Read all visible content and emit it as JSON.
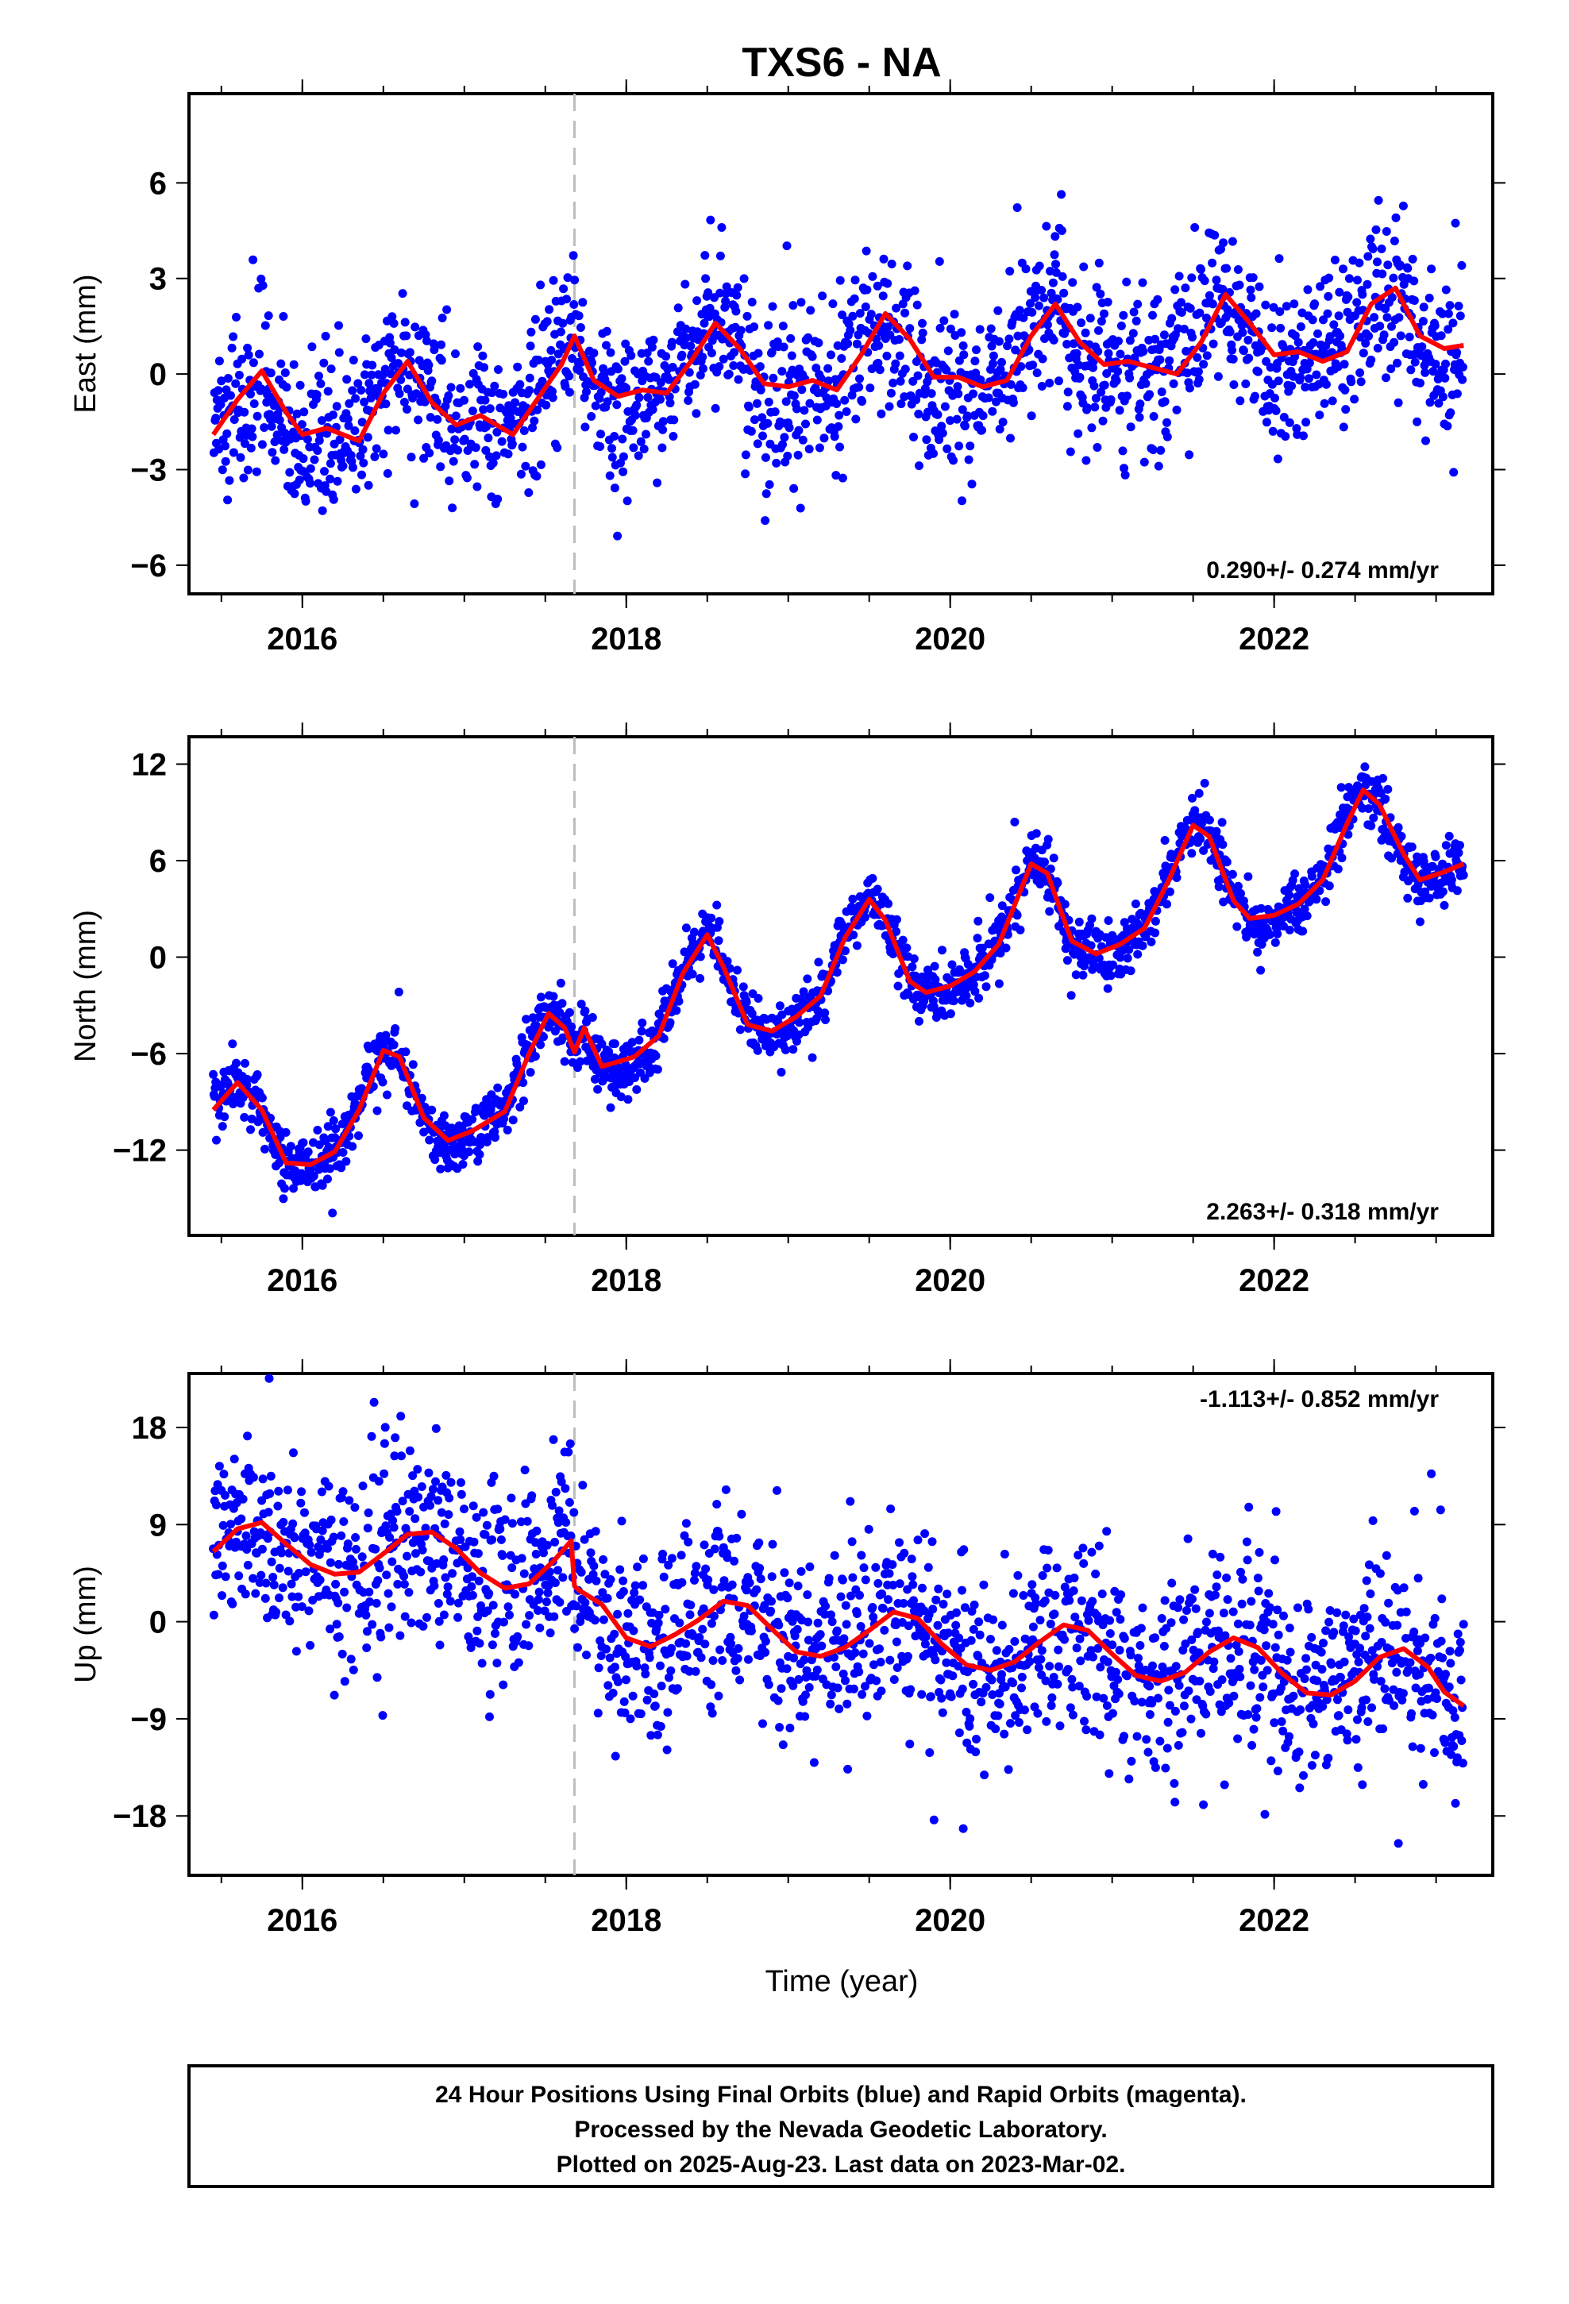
{
  "title": "TXS6 - NA",
  "colors": {
    "final_orbits": "#0000ff",
    "model_fit": "#ff0000",
    "event_line": "#bdbdbd",
    "frame": "#000000"
  },
  "x_axis": {
    "label": "Time (year)",
    "ticks": [
      "2016",
      "2018",
      "2020",
      "2022"
    ],
    "range": [
      2015.3,
      2023.35
    ]
  },
  "footer": {
    "line1": "24 Hour Positions Using Final Orbits (blue) and Rapid Orbits (magenta).",
    "line2": "Processed by the Nevada Geodetic Laboratory.",
    "line3": "Plotted on 2025-Aug-23. Last data on 2023-Mar-02."
  },
  "chart_data": [
    {
      "type": "scatter",
      "ylabel": "East (mm)",
      "ylim": [
        -6.9,
        8.8
      ],
      "yticks": [
        "6",
        "3",
        "0",
        "-3",
        "-6"
      ],
      "rate": "0.290+/- 0.274 mm/yr",
      "rate_position": "bottom-right",
      "event_line_x": 2017.68,
      "data_start": 2015.45,
      "data_end": 2023.17,
      "series": [
        {
          "role": "fit",
          "x": [
            2015.45,
            2015.6,
            2015.75,
            2015.9,
            2016.0,
            2016.15,
            2016.35,
            2016.5,
            2016.65,
            2016.8,
            2016.95,
            2017.1,
            2017.3,
            2017.45,
            2017.6,
            2017.68,
            2017.8,
            2017.95,
            2018.1,
            2018.25,
            2018.4,
            2018.55,
            2018.7,
            2018.85,
            2019.0,
            2019.15,
            2019.3,
            2019.45,
            2019.6,
            2019.75,
            2019.9,
            2020.05,
            2020.2,
            2020.35,
            2020.5,
            2020.65,
            2020.8,
            2020.95,
            2021.1,
            2021.25,
            2021.4,
            2021.55,
            2021.7,
            2021.85,
            2022.0,
            2022.15,
            2022.3,
            2022.45,
            2022.6,
            2022.75,
            2022.9,
            2023.05,
            2023.17
          ],
          "y": [
            -1.9,
            -0.8,
            0.1,
            -1.2,
            -1.9,
            -1.7,
            -2.1,
            -0.6,
            0.4,
            -0.9,
            -1.6,
            -1.3,
            -1.9,
            -0.8,
            0.3,
            1.2,
            -0.2,
            -0.7,
            -0.5,
            -0.6,
            0.4,
            1.6,
            0.8,
            -0.3,
            -0.4,
            -0.2,
            -0.5,
            0.6,
            1.9,
            1.1,
            -0.1,
            -0.1,
            -0.4,
            -0.2,
            1.2,
            2.2,
            1.0,
            0.3,
            0.4,
            0.2,
            0.0,
            1.0,
            2.5,
            1.6,
            0.6,
            0.7,
            0.4,
            0.7,
            2.2,
            2.7,
            1.2,
            0.8,
            0.9
          ]
        },
        {
          "role": "points",
          "amplitude": 1.2,
          "noise": 1.25
        }
      ]
    },
    {
      "type": "scatter",
      "ylabel": "North (mm)",
      "ylim": [
        -17.3,
        13.7
      ],
      "yticks": [
        "12",
        "6",
        "0",
        "-6",
        "-12"
      ],
      "rate": "2.263+/- 0.318 mm/yr",
      "rate_position": "bottom-right",
      "event_line_x": 2017.68,
      "data_start": 2015.45,
      "data_end": 2023.17,
      "series": [
        {
          "role": "fit",
          "x": [
            2015.45,
            2015.6,
            2015.75,
            2015.9,
            2016.05,
            2016.2,
            2016.35,
            2016.5,
            2016.6,
            2016.75,
            2016.9,
            2017.05,
            2017.25,
            2017.4,
            2017.52,
            2017.62,
            2017.68,
            2017.74,
            2017.85,
            2018.05,
            2018.2,
            2018.35,
            2018.5,
            2018.6,
            2018.75,
            2018.9,
            2019.05,
            2019.2,
            2019.35,
            2019.5,
            2019.6,
            2019.75,
            2019.85,
            2020.0,
            2020.15,
            2020.3,
            2020.5,
            2020.6,
            2020.75,
            2020.9,
            2021.05,
            2021.2,
            2021.35,
            2021.5,
            2021.6,
            2021.75,
            2021.85,
            2022.0,
            2022.15,
            2022.3,
            2022.45,
            2022.55,
            2022.65,
            2022.8,
            2022.9,
            2023.05,
            2023.17
          ],
          "y": [
            -9.5,
            -7.8,
            -9.5,
            -12.8,
            -12.9,
            -12.1,
            -9.5,
            -5.8,
            -6.2,
            -10.0,
            -11.4,
            -10.8,
            -9.6,
            -6.0,
            -3.5,
            -4.4,
            -5.9,
            -4.4,
            -6.8,
            -6.2,
            -4.9,
            -1.0,
            1.4,
            -0.6,
            -4.2,
            -4.6,
            -3.7,
            -2.4,
            1.2,
            3.6,
            2.3,
            -1.5,
            -2.2,
            -1.8,
            -0.9,
            0.8,
            5.8,
            5.2,
            1.0,
            0.2,
            0.8,
            1.8,
            4.8,
            8.2,
            7.5,
            3.5,
            2.4,
            2.6,
            3.3,
            4.8,
            8.3,
            10.4,
            9.5,
            6.4,
            4.8,
            5.3,
            5.8
          ]
        },
        {
          "role": "points",
          "amplitude": 0.9,
          "noise": 0.95
        }
      ]
    },
    {
      "type": "scatter",
      "ylabel": "Up (mm)",
      "ylim": [
        -23.5,
        23.0
      ],
      "yticks": [
        "18",
        "9",
        "0",
        "-9",
        "-18"
      ],
      "rate": "-1.113+/- 0.852 mm/yr",
      "rate_position": "top-right",
      "event_line_x": 2017.68,
      "data_start": 2015.45,
      "data_end": 2023.17,
      "series": [
        {
          "role": "fit",
          "x": [
            2015.45,
            2015.6,
            2015.75,
            2015.9,
            2016.05,
            2016.2,
            2016.35,
            2016.5,
            2016.65,
            2016.8,
            2016.95,
            2017.1,
            2017.25,
            2017.4,
            2017.55,
            2017.66,
            2017.68,
            2017.7,
            2017.85,
            2018.0,
            2018.15,
            2018.3,
            2018.45,
            2018.6,
            2018.75,
            2018.9,
            2019.05,
            2019.2,
            2019.35,
            2019.5,
            2019.65,
            2019.8,
            2019.95,
            2020.1,
            2020.25,
            2020.4,
            2020.55,
            2020.7,
            2020.85,
            2021.0,
            2021.15,
            2021.3,
            2021.45,
            2021.6,
            2021.75,
            2021.9,
            2022.05,
            2022.2,
            2022.35,
            2022.5,
            2022.65,
            2022.8,
            2022.95,
            2023.05,
            2023.17
          ],
          "y": [
            6.5,
            8.6,
            9.2,
            7.2,
            5.3,
            4.4,
            4.6,
            6.3,
            8.1,
            8.3,
            6.8,
            4.5,
            3.1,
            3.5,
            5.6,
            7.5,
            3.3,
            3.0,
            1.6,
            -1.5,
            -2.3,
            -1.2,
            0.2,
            1.9,
            1.5,
            -0.7,
            -2.8,
            -3.2,
            -2.4,
            -0.8,
            0.9,
            0.3,
            -2.1,
            -4.0,
            -4.5,
            -3.7,
            -1.9,
            -0.3,
            -0.8,
            -3.0,
            -5.0,
            -5.5,
            -4.7,
            -2.8,
            -1.5,
            -2.4,
            -4.8,
            -6.6,
            -6.8,
            -5.5,
            -3.3,
            -2.5,
            -4.2,
            -6.5,
            -7.8
          ]
        },
        {
          "role": "points",
          "amplitude": 1.5,
          "noise": 4.6
        }
      ]
    }
  ]
}
